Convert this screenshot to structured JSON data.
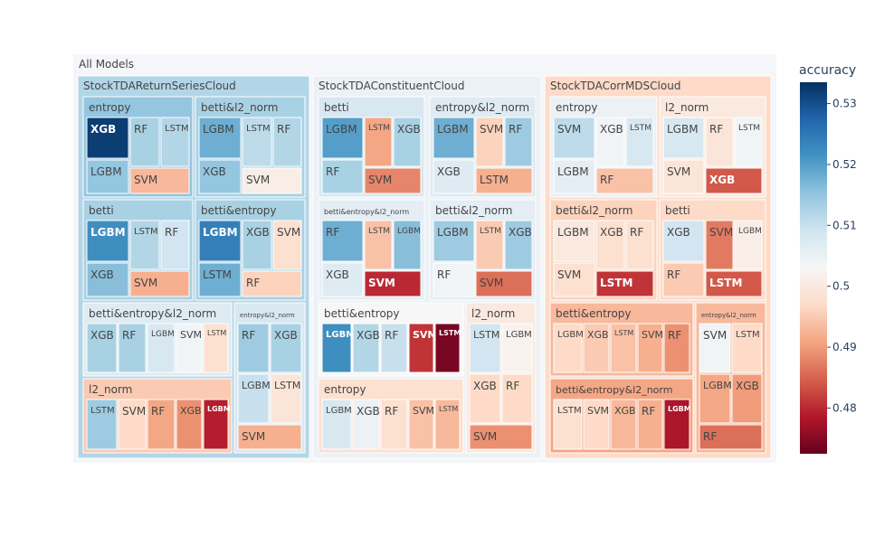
{
  "chart_data": {
    "type": "treemap",
    "root_label": "All Models",
    "colorbar": {
      "title": "accuracy",
      "tick_labels": [
        "0.53",
        "0.52",
        "0.51",
        "0.5",
        "0.49",
        "0.48"
      ],
      "tick_values": [
        0.53,
        0.52,
        0.51,
        0.5,
        0.49,
        0.48
      ],
      "range": [
        0.4725,
        0.5335
      ],
      "colorscale": [
        "#67001f",
        "#b2182b",
        "#d6604d",
        "#f4a582",
        "#fddbc7",
        "#f7f7f7",
        "#d1e5f0",
        "#92c5de",
        "#4393c3",
        "#2166ac",
        "#053061"
      ]
    },
    "groups": [
      {
        "label": "StockTDAReturnSeriesCloud",
        "accuracy": 0.512,
        "children": [
          {
            "label": "entropy",
            "accuracy": 0.515,
            "models": [
              {
                "label": "XGB",
                "accuracy": 0.532
              },
              {
                "label": "LGBM",
                "accuracy": 0.515
              },
              {
                "label": "RF",
                "accuracy": 0.513
              },
              {
                "label": "LSTM",
                "accuracy": 0.512
              },
              {
                "label": "SVM",
                "accuracy": 0.493
              }
            ]
          },
          {
            "label": "betti&l2_norm",
            "accuracy": 0.513,
            "models": [
              {
                "label": "LGBM",
                "accuracy": 0.518
              },
              {
                "label": "XGB",
                "accuracy": 0.515
              },
              {
                "label": "LSTM",
                "accuracy": 0.511
              },
              {
                "label": "RF",
                "accuracy": 0.512
              },
              {
                "label": "SVM",
                "accuracy": 0.501
              }
            ]
          },
          {
            "label": "betti",
            "accuracy": 0.513,
            "models": [
              {
                "label": "LGBM",
                "accuracy": 0.522
              },
              {
                "label": "XGB",
                "accuracy": 0.516
              },
              {
                "label": "LSTM",
                "accuracy": 0.512
              },
              {
                "label": "RF",
                "accuracy": 0.509
              },
              {
                "label": "SVM",
                "accuracy": 0.492
              }
            ]
          },
          {
            "label": "betti&entropy",
            "accuracy": 0.513,
            "models": [
              {
                "label": "LGBM",
                "accuracy": 0.524
              },
              {
                "label": "LSTM",
                "accuracy": 0.518
              },
              {
                "label": "XGB",
                "accuracy": 0.513
              },
              {
                "label": "SVM",
                "accuracy": 0.498
              },
              {
                "label": "RF",
                "accuracy": 0.496
              }
            ]
          },
          {
            "label": "betti&entropy&l2_norm",
            "accuracy": 0.507,
            "models": [
              {
                "label": "XGB",
                "accuracy": 0.513
              },
              {
                "label": "RF",
                "accuracy": 0.513
              },
              {
                "label": "LGBM",
                "accuracy": 0.508
              },
              {
                "label": "SVM",
                "accuracy": 0.504
              },
              {
                "label": "LSTM",
                "accuracy": 0.498
              }
            ]
          },
          {
            "label": "entropy&l2_norm",
            "accuracy": 0.508,
            "models": [
              {
                "label": "RF",
                "accuracy": 0.514
              },
              {
                "label": "XGB",
                "accuracy": 0.513
              },
              {
                "label": "LGBM",
                "accuracy": 0.51
              },
              {
                "label": "LSTM",
                "accuracy": 0.499
              },
              {
                "label": "SVM",
                "accuracy": 0.492
              }
            ]
          },
          {
            "label": "l2_norm",
            "accuracy": 0.495,
            "models": [
              {
                "label": "LSTM",
                "accuracy": 0.514
              },
              {
                "label": "SVM",
                "accuracy": 0.497
              },
              {
                "label": "RF",
                "accuracy": 0.491
              },
              {
                "label": "XGB",
                "accuracy": 0.489
              },
              {
                "label": "LGBM",
                "accuracy": 0.479
              }
            ]
          }
        ]
      },
      {
        "label": "StockTDAConstituentCloud",
        "accuracy": 0.505,
        "children": [
          {
            "label": "betti",
            "accuracy": 0.508,
            "models": [
              {
                "label": "LGBM",
                "accuracy": 0.52
              },
              {
                "label": "RF",
                "accuracy": 0.513
              },
              {
                "label": "LSTM",
                "accuracy": 0.491
              },
              {
                "label": "XGB",
                "accuracy": 0.513
              },
              {
                "label": "SVM",
                "accuracy": 0.488
              }
            ]
          },
          {
            "label": "entropy&l2_norm",
            "accuracy": 0.507,
            "models": [
              {
                "label": "LGBM",
                "accuracy": 0.518
              },
              {
                "label": "XGB",
                "accuracy": 0.507
              },
              {
                "label": "SVM",
                "accuracy": 0.496
              },
              {
                "label": "RF",
                "accuracy": 0.514
              },
              {
                "label": "LSTM",
                "accuracy": 0.492
              }
            ]
          },
          {
            "label": "betti&entropy&l2_norm",
            "accuracy": 0.506,
            "models": [
              {
                "label": "RF",
                "accuracy": 0.518
              },
              {
                "label": "XGB",
                "accuracy": 0.507
              },
              {
                "label": "LSTM",
                "accuracy": 0.494
              },
              {
                "label": "LGBM",
                "accuracy": 0.516
              },
              {
                "label": "SVM",
                "accuracy": 0.48
              }
            ]
          },
          {
            "label": "betti&l2_norm",
            "accuracy": 0.506,
            "models": [
              {
                "label": "LGBM",
                "accuracy": 0.514
              },
              {
                "label": "RF",
                "accuracy": 0.504
              },
              {
                "label": "LSTM",
                "accuracy": 0.495
              },
              {
                "label": "XGB",
                "accuracy": 0.514
              },
              {
                "label": "SVM",
                "accuracy": 0.486
              }
            ]
          },
          {
            "label": "betti&entropy",
            "accuracy": 0.503,
            "models": [
              {
                "label": "LGBM",
                "accuracy": 0.522
              },
              {
                "label": "XGB",
                "accuracy": 0.512
              },
              {
                "label": "RF",
                "accuracy": 0.51
              },
              {
                "label": "SVM",
                "accuracy": 0.481
              },
              {
                "label": "LSTM",
                "accuracy": 0.474
              }
            ]
          },
          {
            "label": "l2_norm",
            "accuracy": 0.5,
            "models": [
              {
                "label": "LSTM",
                "accuracy": 0.509
              },
              {
                "label": "LGBM",
                "accuracy": 0.502
              },
              {
                "label": "XGB",
                "accuracy": 0.497
              },
              {
                "label": "RF",
                "accuracy": 0.497
              },
              {
                "label": "SVM",
                "accuracy": 0.489
              }
            ]
          },
          {
            "label": "entropy",
            "accuracy": 0.498,
            "models": [
              {
                "label": "LGBM",
                "accuracy": 0.508
              },
              {
                "label": "XGB",
                "accuracy": 0.505
              },
              {
                "label": "RF",
                "accuracy": 0.498
              },
              {
                "label": "SVM",
                "accuracy": 0.494
              },
              {
                "label": "LSTM",
                "accuracy": 0.493
              }
            ]
          }
        ]
      },
      {
        "label": "StockTDACorrMDSCloud",
        "accuracy": 0.497,
        "children": [
          {
            "label": "entropy",
            "accuracy": 0.505,
            "models": [
              {
                "label": "SVM",
                "accuracy": 0.511
              },
              {
                "label": "LGBM",
                "accuracy": 0.506
              },
              {
                "label": "XGB",
                "accuracy": 0.504
              },
              {
                "label": "LSTM",
                "accuracy": 0.508
              },
              {
                "label": "RF",
                "accuracy": 0.494
              }
            ]
          },
          {
            "label": "l2_norm",
            "accuracy": 0.5,
            "models": [
              {
                "label": "LGBM",
                "accuracy": 0.508
              },
              {
                "label": "SVM",
                "accuracy": 0.499
              },
              {
                "label": "RF",
                "accuracy": 0.499
              },
              {
                "label": "LSTM",
                "accuracy": 0.504
              },
              {
                "label": "XGB",
                "accuracy": 0.484
              }
            ]
          },
          {
            "label": "betti&l2_norm",
            "accuracy": 0.496,
            "models": [
              {
                "label": "LGBM",
                "accuracy": 0.5
              },
              {
                "label": "SVM",
                "accuracy": 0.498
              },
              {
                "label": "XGB",
                "accuracy": 0.498
              },
              {
                "label": "RF",
                "accuracy": 0.498
              },
              {
                "label": "LSTM",
                "accuracy": 0.481
              }
            ]
          },
          {
            "label": "betti",
            "accuracy": 0.497,
            "models": [
              {
                "label": "XGB",
                "accuracy": 0.509
              },
              {
                "label": "RF",
                "accuracy": 0.495
              },
              {
                "label": "SVM",
                "accuracy": 0.487
              },
              {
                "label": "LGBM",
                "accuracy": 0.501
              },
              {
                "label": "LSTM",
                "accuracy": 0.484
              }
            ]
          },
          {
            "label": "betti&entropy",
            "accuracy": 0.493,
            "models": [
              {
                "label": "LGBM",
                "accuracy": 0.497
              },
              {
                "label": "XGB",
                "accuracy": 0.495
              },
              {
                "label": "LSTM",
                "accuracy": 0.494
              },
              {
                "label": "SVM",
                "accuracy": 0.492
              },
              {
                "label": "RF",
                "accuracy": 0.489
              }
            ]
          },
          {
            "label": "entropy&l2_norm",
            "accuracy": 0.493,
            "models": [
              {
                "label": "SVM",
                "accuracy": 0.504
              },
              {
                "label": "LSTM",
                "accuracy": 0.497
              },
              {
                "label": "LGBM",
                "accuracy": 0.491
              },
              {
                "label": "XGB",
                "accuracy": 0.49
              },
              {
                "label": "RF",
                "accuracy": 0.486
              }
            ]
          },
          {
            "label": "betti&entropy&l2_norm",
            "accuracy": 0.491,
            "models": [
              {
                "label": "LSTM",
                "accuracy": 0.498
              },
              {
                "label": "SVM",
                "accuracy": 0.497
              },
              {
                "label": "XGB",
                "accuracy": 0.493
              },
              {
                "label": "RF",
                "accuracy": 0.492
              },
              {
                "label": "LGBM",
                "accuracy": 0.478
              }
            ]
          }
        ]
      }
    ]
  }
}
